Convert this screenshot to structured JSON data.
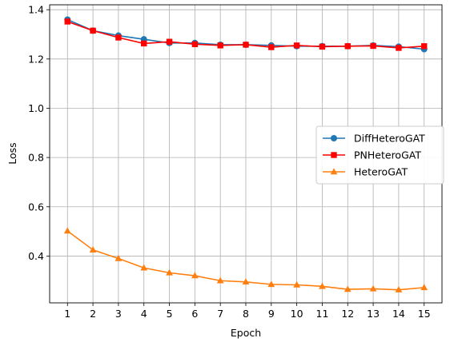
{
  "chart_data": {
    "type": "line",
    "xlabel": "Epoch",
    "ylabel": "Loss",
    "x": [
      1,
      2,
      3,
      4,
      5,
      6,
      7,
      8,
      9,
      10,
      11,
      12,
      13,
      14,
      15
    ],
    "xlim": [
      0.3,
      15.7
    ],
    "ylim": [
      0.21,
      1.42
    ],
    "yticks": [
      0.4,
      0.6,
      0.8,
      1.0,
      1.2,
      1.4
    ],
    "ytick_labels": [
      "0.4",
      "0.6",
      "0.8",
      "1.0",
      "1.2",
      "1.4"
    ],
    "xtick_labels": [
      "1",
      "2",
      "3",
      "4",
      "5",
      "6",
      "7",
      "8",
      "9",
      "10",
      "11",
      "12",
      "13",
      "14",
      "15"
    ],
    "grid": true,
    "legend_position": "center-right",
    "series": [
      {
        "name": "DiffHeteroGAT",
        "color": "#1f77b4",
        "marker": "circle",
        "values": [
          1.36,
          1.315,
          1.295,
          1.28,
          1.265,
          1.265,
          1.258,
          1.258,
          1.255,
          1.252,
          1.252,
          1.252,
          1.255,
          1.25,
          1.24
        ]
      },
      {
        "name": "PNHeteroGAT",
        "color": "#ff0000",
        "marker": "square",
        "values": [
          1.352,
          1.315,
          1.287,
          1.263,
          1.27,
          1.26,
          1.255,
          1.258,
          1.248,
          1.255,
          1.25,
          1.252,
          1.253,
          1.245,
          1.252
        ]
      },
      {
        "name": "HeteroGAT",
        "color": "#ff7f0e",
        "marker": "triangle",
        "values": [
          0.502,
          0.425,
          0.39,
          0.352,
          0.332,
          0.32,
          0.3,
          0.295,
          0.285,
          0.283,
          0.277,
          0.265,
          0.267,
          0.263,
          0.272
        ]
      }
    ]
  }
}
